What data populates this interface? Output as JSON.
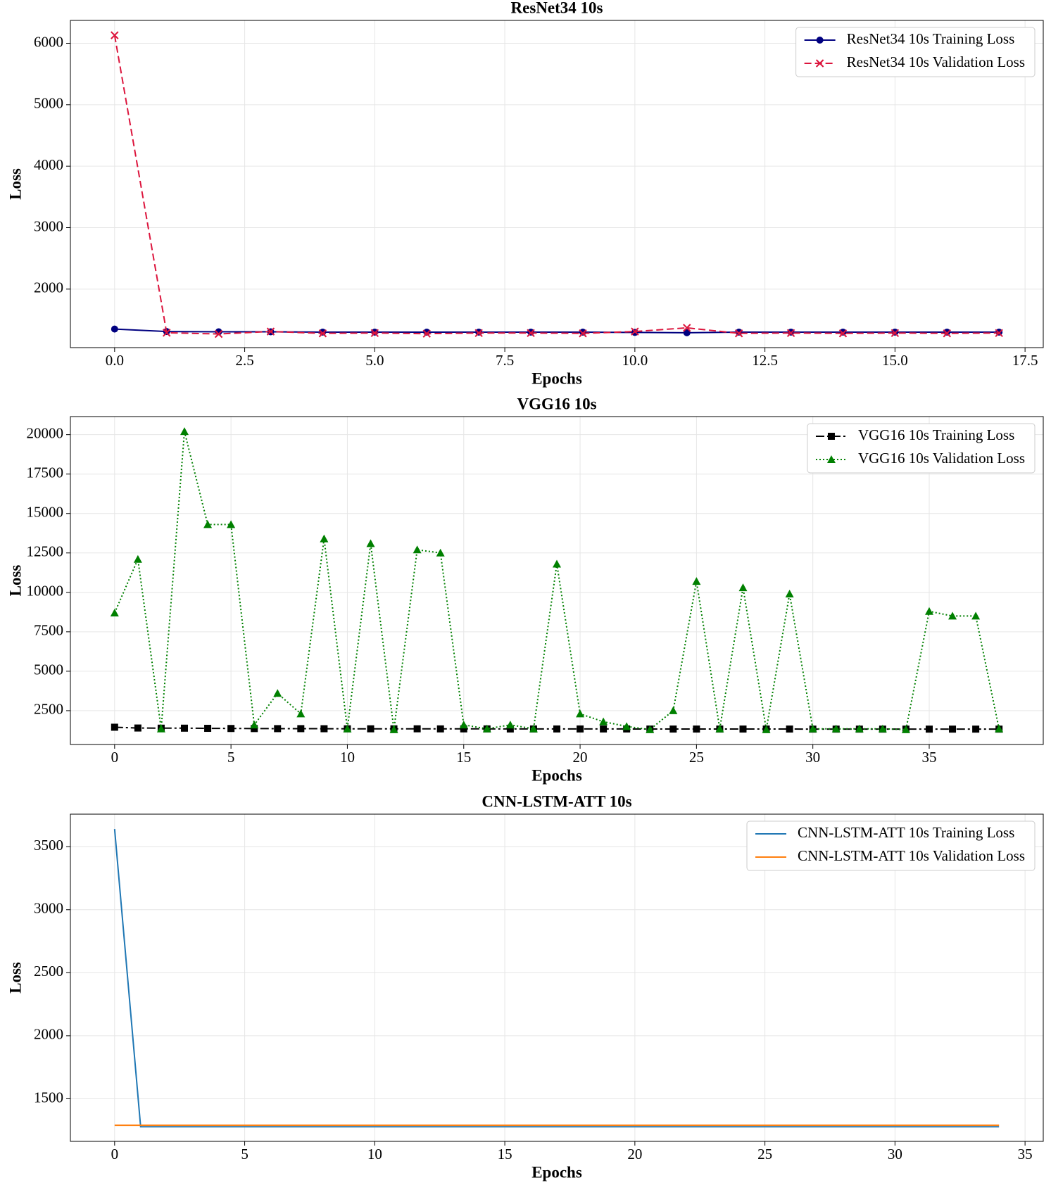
{
  "chart_data": [
    {
      "type": "line",
      "title": "ResNet34 10s",
      "x_label": "Epochs",
      "y_label": "Loss",
      "grid": true,
      "legend": "upper right",
      "x": [
        0,
        1,
        2,
        3,
        4,
        5,
        6,
        7,
        8,
        9,
        10,
        11,
        12,
        13,
        14,
        15,
        16,
        17
      ],
      "xlim": [
        -0.85,
        17.85
      ],
      "ylim": [
        1048,
        6372
      ],
      "xticks": [
        {
          "value": 0,
          "label": "0.0"
        },
        2.5,
        {
          "value": 5,
          "label": "5.0"
        },
        7.5,
        {
          "value": 10,
          "label": "10.0"
        },
        12.5,
        {
          "value": 15,
          "label": "15.0"
        },
        17.5
      ],
      "yticks": [
        2000,
        3000,
        4000,
        5000,
        6000
      ],
      "series": [
        {
          "name": "ResNet34 10s Training Loss",
          "color": "#000080",
          "marker": "circle",
          "linestyle": "solid",
          "values": [
            1350,
            1310,
            1305,
            1305,
            1300,
            1300,
            1300,
            1300,
            1300,
            1300,
            1295,
            1290,
            1300,
            1300,
            1300,
            1300,
            1300,
            1300
          ]
        },
        {
          "name": "ResNet34 10s Validation Loss",
          "color": "#dc143c",
          "marker": "x",
          "linestyle": "dashed",
          "values": [
            6130,
            1290,
            1270,
            1310,
            1280,
            1285,
            1275,
            1285,
            1285,
            1280,
            1310,
            1370,
            1280,
            1285,
            1280,
            1285,
            1280,
            1285
          ]
        }
      ]
    },
    {
      "type": "line",
      "title": "VGG16 10s",
      "x_label": "Epochs",
      "y_label": "Loss",
      "grid": true,
      "legend": "upper right",
      "x": [
        0,
        1,
        2,
        3,
        4,
        5,
        6,
        7,
        8,
        9,
        10,
        11,
        12,
        13,
        14,
        15,
        16,
        17,
        18,
        19,
        20,
        21,
        22,
        23,
        24,
        25,
        26,
        27,
        28,
        29,
        30,
        31,
        32,
        33,
        34,
        35,
        36,
        37,
        38
      ],
      "xlim": [
        -1.9,
        39.9
      ],
      "ylim": [
        355,
        21145
      ],
      "xticks": [
        0,
        5,
        10,
        15,
        20,
        25,
        30,
        35
      ],
      "yticks": [
        2500,
        5000,
        7500,
        10000,
        12500,
        15000,
        17500,
        20000
      ],
      "series": [
        {
          "name": "VGG16 10s Training Loss",
          "color": "#000000",
          "marker": "square",
          "linestyle": "dashdot",
          "values": [
            1450,
            1400,
            1390,
            1390,
            1380,
            1370,
            1365,
            1360,
            1360,
            1355,
            1350,
            1350,
            1350,
            1350,
            1345,
            1345,
            1345,
            1340,
            1340,
            1340,
            1340,
            1340,
            1340,
            1335,
            1335,
            1335,
            1335,
            1335,
            1335,
            1335,
            1330,
            1330,
            1330,
            1330,
            1330,
            1330,
            1330,
            1330,
            1330
          ]
        },
        {
          "name": "VGG16 10s Validation Loss",
          "color": "#008000",
          "marker": "triangle",
          "linestyle": "dotted",
          "values": [
            8700,
            12100,
            1350,
            20200,
            14300,
            14300,
            1600,
            3600,
            2300,
            13400,
            1350,
            13100,
            1300,
            12700,
            12500,
            1600,
            1350,
            1600,
            1350,
            11800,
            2300,
            1800,
            1500,
            1300,
            2500,
            10700,
            1350,
            10300,
            1300,
            9900,
            1350,
            1350,
            1350,
            1350,
            1300,
            8800,
            8500,
            8500,
            1350
          ]
        }
      ]
    },
    {
      "type": "line",
      "title": "CNN-LSTM-ATT 10s",
      "x_label": "Epochs",
      "y_label": "Loss",
      "grid": true,
      "legend": "upper right",
      "x": [
        0,
        1,
        2,
        3,
        4,
        5,
        6,
        7,
        8,
        9,
        10,
        11,
        12,
        13,
        14,
        15,
        16,
        17,
        18,
        19,
        20,
        21,
        22,
        23,
        24,
        25,
        26,
        27,
        28,
        29,
        30,
        31,
        32,
        33,
        34
      ],
      "xlim": [
        -1.7,
        35.7
      ],
      "ylim": [
        1162,
        3758
      ],
      "xticks": [
        0,
        5,
        10,
        15,
        20,
        25,
        30,
        35
      ],
      "yticks": [
        1500,
        2000,
        2500,
        3000,
        3500
      ],
      "series": [
        {
          "name": "CNN-LSTM-ATT 10s Training Loss",
          "color": "#1f77b4",
          "marker": "none",
          "linestyle": "solid",
          "values": [
            3640,
            1278,
            1278,
            1278,
            1278,
            1278,
            1278,
            1278,
            1278,
            1278,
            1278,
            1278,
            1278,
            1278,
            1278,
            1278,
            1278,
            1278,
            1278,
            1278,
            1278,
            1278,
            1278,
            1278,
            1278,
            1278,
            1278,
            1278,
            1278,
            1278,
            1278,
            1278,
            1278,
            1278,
            1278
          ]
        },
        {
          "name": "CNN-LSTM-ATT 10s Validation Loss",
          "color": "#ff7f0e",
          "marker": "none",
          "linestyle": "solid",
          "values": [
            1290,
            1290,
            1290,
            1290,
            1290,
            1290,
            1290,
            1290,
            1290,
            1290,
            1290,
            1290,
            1290,
            1290,
            1290,
            1290,
            1290,
            1290,
            1290,
            1290,
            1290,
            1290,
            1290,
            1290,
            1290,
            1290,
            1290,
            1290,
            1290,
            1290,
            1290,
            1290,
            1290,
            1290,
            1290
          ]
        }
      ]
    }
  ]
}
